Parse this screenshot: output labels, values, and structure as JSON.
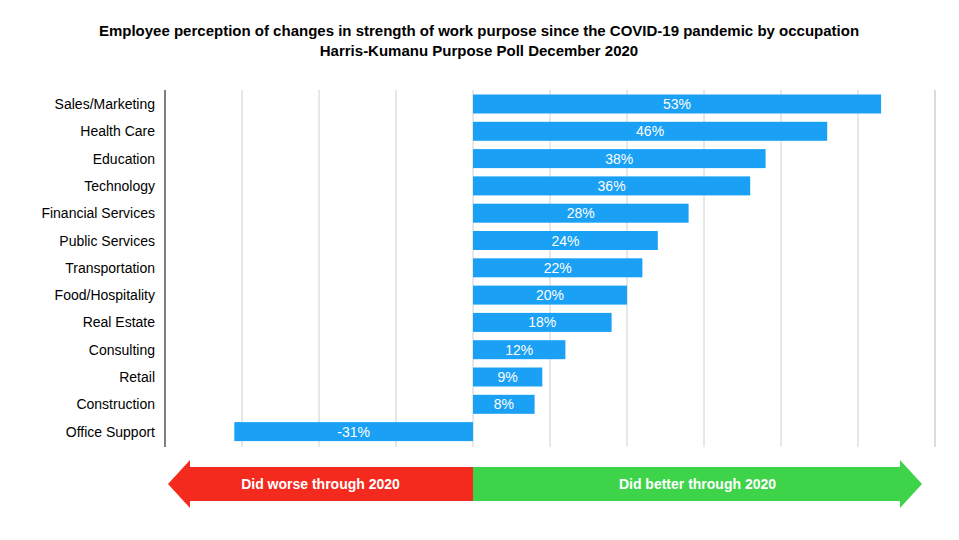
{
  "chart_data": {
    "type": "bar",
    "orientation": "horizontal",
    "title": "Employee perception of changes in strength of work purpose since the COVID-19 pandemic by occupation",
    "subtitle": "Harris-Kumanu Purpose Poll December 2020",
    "categories": [
      "Sales/Marketing",
      "Health Care",
      "Education",
      "Technology",
      "Financial Services",
      "Public Services",
      "Transportation",
      "Food/Hospitality",
      "Real Estate",
      "Consulting",
      "Retail",
      "Construction",
      "Office Support"
    ],
    "values": [
      53,
      46,
      38,
      36,
      28,
      24,
      22,
      20,
      18,
      12,
      9,
      8,
      -31
    ],
    "value_labels": [
      "53%",
      "46%",
      "38%",
      "36%",
      "28%",
      "24%",
      "22%",
      "20%",
      "18%",
      "12%",
      "9%",
      "8%",
      "-31%"
    ],
    "color": "#1aa0f5",
    "xlim": [
      -40,
      60
    ],
    "xticks": [
      -40,
      -30,
      -20,
      -10,
      0,
      10,
      20,
      30,
      40,
      50,
      60
    ],
    "grid": true,
    "tick_labels": false,
    "data_labels": true,
    "annotations": [
      "Did worse through 2020",
      "Did better through 2020"
    ]
  }
}
